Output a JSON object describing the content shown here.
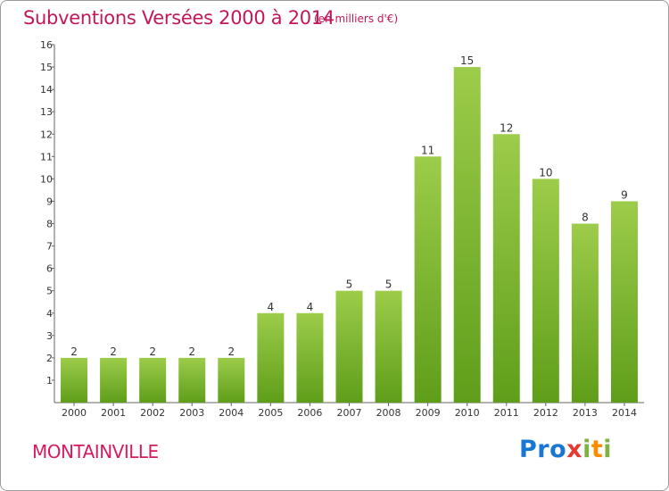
{
  "title": "Subventions Versées 2000 à 2014",
  "subtitle": "(en milliers d'€)",
  "commune": "MONTAINVILLE",
  "logo": {
    "p1": "Pro",
    "p2": "x",
    "p3": "i",
    "p4": "t",
    "p5": "i"
  },
  "chart_data": {
    "type": "bar",
    "title": "Subventions Versées 2000 à 2014",
    "subtitle": "(en milliers d'€)",
    "xlabel": "",
    "ylabel": "",
    "categories": [
      "2000",
      "2001",
      "2002",
      "2003",
      "2004",
      "2005",
      "2006",
      "2007",
      "2008",
      "2009",
      "2010",
      "2011",
      "2012",
      "2013",
      "2014"
    ],
    "values": [
      2,
      2,
      2,
      2,
      2,
      4,
      4,
      5,
      5,
      11,
      15,
      12,
      10,
      8,
      9
    ],
    "ylim": [
      0,
      16
    ],
    "yticks": [
      1,
      2,
      3,
      4,
      5,
      6,
      7,
      8,
      9,
      10,
      11,
      12,
      13,
      14,
      15,
      16
    ],
    "grid": false,
    "bar_color_top": "#9ccc4a",
    "bar_color_bottom": "#5f9e1a"
  }
}
